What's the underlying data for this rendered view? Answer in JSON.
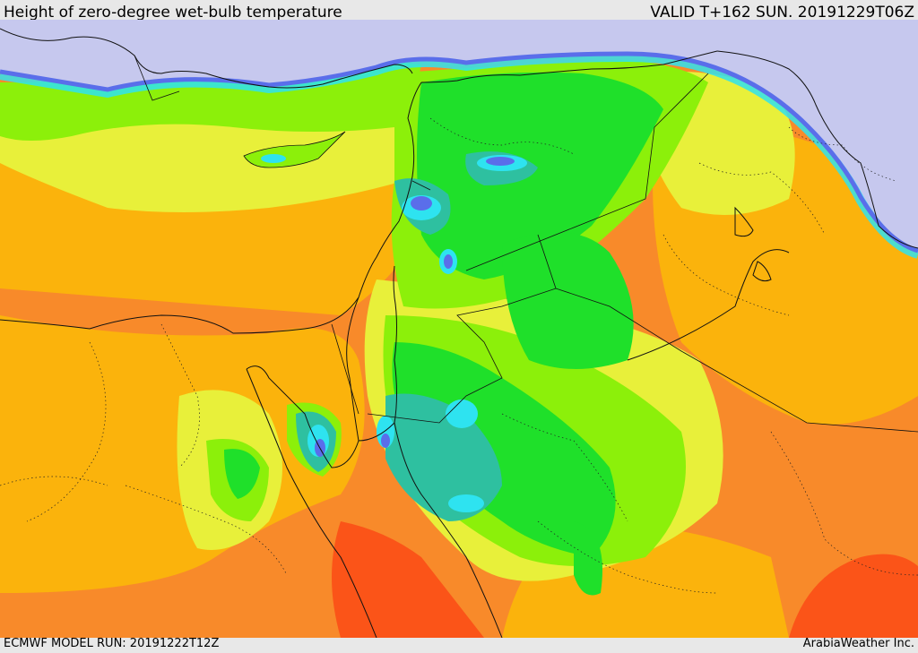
{
  "header": {
    "title": "Height of zero-degree wet-bulb temperature",
    "valid": "VALID T+162 SUN. 20191229T06Z"
  },
  "footer": {
    "model_run": "ECMWF MODEL RUN: 20191222T12Z",
    "credit": "ArabiaWeather Inc."
  },
  "colors": {
    "sea_light": "#c6c8ee",
    "blue": "#5a6eea",
    "cyan": "#2ee3f0",
    "teal": "#2ec0a0",
    "green": "#1fe02a",
    "lime": "#8cf00a",
    "yellow": "#e8f03a",
    "orange_light": "#fbb30c",
    "orange": "#f88a2a",
    "red_orange": "#fb5418"
  }
}
